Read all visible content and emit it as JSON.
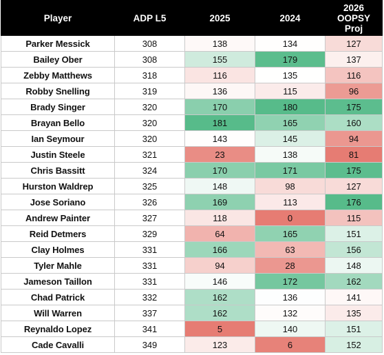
{
  "table": {
    "headers": {
      "player": "Player",
      "adp": "ADP L5",
      "y2025": "2025",
      "y2024": "2024",
      "proj_line1": "2026 OOPSY",
      "proj_line2": "Proj"
    },
    "rows": [
      {
        "player": "Parker Messick",
        "adp": "308",
        "y2025": "138",
        "y2024": "134",
        "proj": "127"
      },
      {
        "player": "Bailey Ober",
        "adp": "308",
        "y2025": "155",
        "y2024": "179",
        "proj": "137"
      },
      {
        "player": "Zebby Matthews",
        "adp": "318",
        "y2025": "116",
        "y2024": "135",
        "proj": "116"
      },
      {
        "player": "Robby Snelling",
        "adp": "319",
        "y2025": "136",
        "y2024": "115",
        "proj": "96"
      },
      {
        "player": "Brady Singer",
        "adp": "320",
        "y2025": "170",
        "y2024": "180",
        "proj": "175"
      },
      {
        "player": "Brayan Bello",
        "adp": "320",
        "y2025": "181",
        "y2024": "165",
        "proj": "160"
      },
      {
        "player": "Ian Seymour",
        "adp": "320",
        "y2025": "143",
        "y2024": "145",
        "proj": "94"
      },
      {
        "player": "Justin Steele",
        "adp": "321",
        "y2025": "23",
        "y2024": "138",
        "proj": "81"
      },
      {
        "player": "Chris Bassitt",
        "adp": "324",
        "y2025": "170",
        "y2024": "171",
        "proj": "175"
      },
      {
        "player": "Hurston Waldrep",
        "adp": "325",
        "y2025": "148",
        "y2024": "98",
        "proj": "127"
      },
      {
        "player": "Jose Soriano",
        "adp": "326",
        "y2025": "169",
        "y2024": "113",
        "proj": "176"
      },
      {
        "player": "Andrew Painter",
        "adp": "327",
        "y2025": "118",
        "y2024": "0",
        "proj": "115"
      },
      {
        "player": "Reid Detmers",
        "adp": "329",
        "y2025": "64",
        "y2024": "165",
        "proj": "151"
      },
      {
        "player": "Clay Holmes",
        "adp": "331",
        "y2025": "166",
        "y2024": "63",
        "proj": "156"
      },
      {
        "player": "Tyler Mahle",
        "adp": "331",
        "y2025": "94",
        "y2024": "28",
        "proj": "148"
      },
      {
        "player": "Jameson Taillon",
        "adp": "331",
        "y2025": "146",
        "y2024": "172",
        "proj": "162"
      },
      {
        "player": "Chad Patrick",
        "adp": "332",
        "y2025": "162",
        "y2024": "136",
        "proj": "141"
      },
      {
        "player": "Will Warren",
        "adp": "337",
        "y2025": "162",
        "y2024": "132",
        "proj": "135"
      },
      {
        "player": "Reynaldo Lopez",
        "adp": "341",
        "y2025": "5",
        "y2024": "140",
        "proj": "151"
      },
      {
        "player": "Cade Cavalli",
        "adp": "349",
        "y2025": "123",
        "y2024": "6",
        "proj": "152"
      }
    ]
  },
  "colors": {
    "header_bg": "#000000",
    "header_text": "#ffffff",
    "low": "#e67c73",
    "mid": "#ffffff",
    "high": "#57bb8a"
  }
}
